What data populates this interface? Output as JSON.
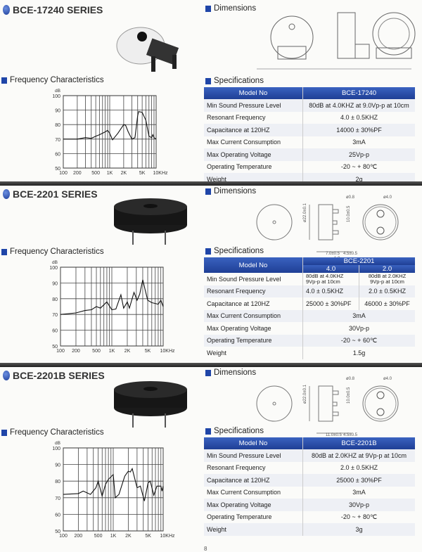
{
  "labels": {
    "dimensions": "Dimensions",
    "specifications": "Specifications",
    "frequency": "Frequency Characteristics"
  },
  "colors": {
    "accent": "#1f45a8",
    "table_header": "#2a4fa8",
    "band": "#333333"
  },
  "axis": {
    "y_unit": "dB",
    "y_ticks": [
      "100",
      "90",
      "80",
      "70",
      "60",
      "50"
    ],
    "x_ticks": [
      "100",
      "200",
      "500",
      "1K",
      "2K",
      "5K",
      "10KHz"
    ]
  },
  "sections": [
    {
      "title": "BCE-17240 SERIES",
      "table": {
        "header": [
          "Model No",
          "BCE-17240"
        ],
        "rows": [
          {
            "label": "Min Sound Pressure Level",
            "values": [
              "80dB at 4.0KHZ at 9.0Vp-p at 10cm"
            ]
          },
          {
            "label": "Resonant Frequency",
            "values": [
              "4.0 ± 0.5KHZ"
            ]
          },
          {
            "label": "Capacitance at 120HZ",
            "values": [
              "14000 ± 30%PF"
            ]
          },
          {
            "label": "Max Current Consumption",
            "values": [
              "3mA"
            ]
          },
          {
            "label": "Max Operating Voltage",
            "values": [
              "25Vp-p"
            ]
          },
          {
            "label": "Operating Temperature",
            "values": [
              "-20 ~ + 80℃"
            ]
          },
          {
            "label": "Weight",
            "values": [
              "2g"
            ]
          }
        ]
      },
      "dims": []
    },
    {
      "title": "BCE-2201 SERIES",
      "table": {
        "header": [
          "Model No",
          "BCE-2201"
        ],
        "subheader": [
          "4.0",
          "2.0"
        ],
        "rows": [
          {
            "label": "Min Sound Pressure Level",
            "values": [
              "80dB at 4.0KHZ 9Vp-p at 10cm",
              "80dB at 2.0KHZ 9Vp-p at 10cm"
            ]
          },
          {
            "label": "Resonant Frequency",
            "values": [
              "4.0 ± 0.5KHZ",
              "2.0 ± 0.5KHZ"
            ]
          },
          {
            "label": "Capacitance at 120HZ",
            "values": [
              "25000 ± 30%PF",
              "46000 ± 30%PF"
            ]
          },
          {
            "label": "Max Current Consumption",
            "values": [
              "3mA"
            ]
          },
          {
            "label": "Max Operating Voltage",
            "values": [
              "30Vp-p"
            ]
          },
          {
            "label": "Operating Temperature",
            "values": [
              "-20 ~ + 60℃"
            ]
          },
          {
            "label": "Weight",
            "values": [
              "1.5g"
            ]
          }
        ]
      },
      "dims": [
        "ø0.8",
        "ø4.0",
        "ø22.0±0.1",
        "10.0±0.5",
        "7.0±0.5",
        "4.5±0.5",
        "1.0"
      ]
    },
    {
      "title": "BCE-2201B SERIES",
      "table": {
        "header": [
          "Model No",
          "BCE-2201B"
        ],
        "rows": [
          {
            "label": "Min Sound Pressure Level",
            "values": [
              "80dB at 2.0KHZ at 9Vp-p at 10cm"
            ]
          },
          {
            "label": "Resonant Frequency",
            "values": [
              "2.0 ± 0.5KHZ"
            ]
          },
          {
            "label": "Capacitance at 120HZ",
            "values": [
              "25000 ± 30%PF"
            ]
          },
          {
            "label": "Max Current Consumption",
            "values": [
              "3mA"
            ]
          },
          {
            "label": "Max Operating Voltage",
            "values": [
              "30Vp-p"
            ]
          },
          {
            "label": "Operating Temperature",
            "values": [
              "-20 ~ + 80℃"
            ]
          },
          {
            "label": "Weight",
            "values": [
              "3g"
            ]
          }
        ]
      },
      "dims": [
        "ø0.8",
        "ø4.0",
        "ø22.0±0.1",
        "10.0±0.5",
        "11.0±0.5",
        "4.5±0.5",
        "1.0"
      ]
    }
  ],
  "chart_data": [
    {
      "type": "line",
      "xscale": "log",
      "xlim": [
        100,
        10000
      ],
      "ylim": [
        50,
        100
      ],
      "grid": true,
      "ylabel": "dB",
      "xlabel": "",
      "x": [
        100,
        150,
        200,
        300,
        400,
        500,
        600,
        800,
        900,
        1000,
        1150,
        1500,
        2000,
        2200,
        2500,
        3000,
        3500,
        4000,
        4200,
        5000,
        6000,
        7000,
        8000,
        8500,
        9000,
        10000
      ],
      "y": [
        70,
        70,
        70,
        71,
        70.5,
        72,
        73,
        75,
        76,
        74,
        69.5,
        74,
        80,
        79.5,
        75,
        70,
        71,
        86,
        89,
        88.5,
        83,
        72,
        71,
        73,
        71,
        70
      ]
    },
    {
      "type": "line",
      "xscale": "log",
      "xlim": [
        100,
        10000
      ],
      "ylim": [
        50,
        100
      ],
      "grid": true,
      "ylabel": "dB",
      "xlabel": "",
      "x": [
        100,
        200,
        300,
        400,
        500,
        600,
        800,
        1000,
        1200,
        1500,
        1700,
        2000,
        2200,
        2700,
        3100,
        3500,
        4000,
        4500,
        5000,
        6000,
        8000,
        9000,
        10000
      ],
      "y": [
        70,
        71,
        72.5,
        73,
        75,
        74,
        78,
        73,
        73.5,
        82.5,
        74,
        78,
        74,
        84,
        79,
        83,
        92,
        85,
        79,
        77.5,
        76.5,
        79,
        75
      ]
    },
    {
      "type": "line",
      "xscale": "log",
      "xlim": [
        100,
        10000
      ],
      "ylim": [
        50,
        100
      ],
      "grid": true,
      "ylabel": "dB",
      "xlabel": "",
      "x": [
        100,
        200,
        250,
        350,
        450,
        500,
        600,
        700,
        800,
        1000,
        1100,
        1300,
        1700,
        2000,
        2200,
        2400,
        3000,
        3500,
        4200,
        5000,
        5500,
        6500,
        7500,
        9000,
        9500,
        10000
      ],
      "y": [
        72,
        72.5,
        74,
        72,
        76,
        80,
        71,
        78,
        81,
        84,
        70,
        72,
        83,
        86,
        85.5,
        87.5,
        76,
        77,
        68,
        79,
        80,
        71.5,
        77,
        77,
        74,
        77
      ]
    }
  ]
}
